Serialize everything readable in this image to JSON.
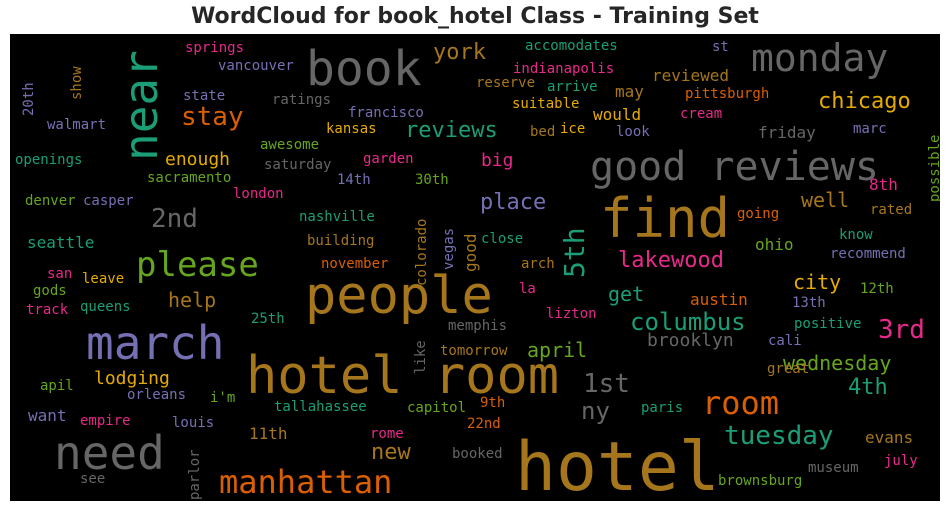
{
  "chart_data": {
    "type": "wordcloud",
    "title": "WordCloud for book_hotel Class - Training Set",
    "background": "#000000",
    "palette": {
      "gray": "#666666",
      "brown": "#a6761d",
      "orange": "#d95f02",
      "green": "#66a61e",
      "teal": "#1b9e77",
      "purple": "#7570b3",
      "pink": "#e7298a",
      "gold": "#e6ab02"
    },
    "words": [
      {
        "text": "hotel",
        "color": "brown"
      },
      {
        "text": "hotel room",
        "color": "brown"
      },
      {
        "text": "people",
        "color": "brown"
      },
      {
        "text": "find",
        "color": "brown"
      },
      {
        "text": "book",
        "color": "gray"
      },
      {
        "text": "march",
        "color": "purple"
      },
      {
        "text": "need",
        "color": "gray"
      },
      {
        "text": "good reviews",
        "color": "gray"
      },
      {
        "text": "monday",
        "color": "gray"
      },
      {
        "text": "near",
        "color": "teal"
      },
      {
        "text": "please",
        "color": "green"
      },
      {
        "text": "manhattan",
        "color": "orange"
      },
      {
        "text": "room",
        "color": "orange"
      },
      {
        "text": "tuesday",
        "color": "teal"
      },
      {
        "text": "columbus",
        "color": "teal"
      },
      {
        "text": "stay",
        "color": "orange"
      },
      {
        "text": "lakewood",
        "color": "pink"
      },
      {
        "text": "1st",
        "color": "gray"
      },
      {
        "text": "2nd",
        "color": "gray"
      },
      {
        "text": "3rd",
        "color": "pink"
      },
      {
        "text": "5th",
        "color": "teal"
      },
      {
        "text": "chicago",
        "color": "gold"
      },
      {
        "text": "reviews",
        "color": "teal"
      },
      {
        "text": "wednesday",
        "color": "green"
      },
      {
        "text": "place",
        "color": "purple"
      },
      {
        "text": "city",
        "color": "gold"
      },
      {
        "text": "york",
        "color": "brown"
      },
      {
        "text": "ny",
        "color": "gray"
      },
      {
        "text": "new",
        "color": "brown"
      },
      {
        "text": "4th",
        "color": "teal"
      },
      {
        "text": "well",
        "color": "brown"
      },
      {
        "text": "help",
        "color": "brown"
      },
      {
        "text": "april",
        "color": "green"
      },
      {
        "text": "get",
        "color": "teal"
      },
      {
        "text": "brooklyn",
        "color": "gray"
      },
      {
        "text": "big",
        "color": "pink"
      },
      {
        "text": "lodging",
        "color": "gold"
      },
      {
        "text": "ohio",
        "color": "green"
      },
      {
        "text": "austin",
        "color": "orange"
      },
      {
        "text": "evans",
        "color": "brown"
      },
      {
        "text": "enough",
        "color": "gold"
      },
      {
        "text": "seattle",
        "color": "teal"
      },
      {
        "text": "11th",
        "color": "brown"
      },
      {
        "text": "8th",
        "color": "pink"
      },
      {
        "text": "friday",
        "color": "gray"
      },
      {
        "text": "reviewed",
        "color": "brown"
      },
      {
        "text": "would",
        "color": "gold"
      },
      {
        "text": "may",
        "color": "brown"
      },
      {
        "text": "want",
        "color": "purple"
      },
      {
        "text": "good",
        "color": "brown"
      },
      {
        "text": "show",
        "color": "brown"
      },
      {
        "text": "20th",
        "color": "purple"
      },
      {
        "text": "springs",
        "color": "pink"
      },
      {
        "text": "vancouver",
        "color": "purple"
      },
      {
        "text": "state",
        "color": "purple"
      },
      {
        "text": "ratings",
        "color": "gray"
      },
      {
        "text": "walmart",
        "color": "purple"
      },
      {
        "text": "openings",
        "color": "teal"
      },
      {
        "text": "awesome",
        "color": "green"
      },
      {
        "text": "saturday",
        "color": "gray"
      },
      {
        "text": "sacramento",
        "color": "green"
      },
      {
        "text": "london",
        "color": "pink"
      },
      {
        "text": "denver",
        "color": "green"
      },
      {
        "text": "casper",
        "color": "purple"
      },
      {
        "text": "nashville",
        "color": "teal"
      },
      {
        "text": "building",
        "color": "brown"
      },
      {
        "text": "san",
        "color": "pink"
      },
      {
        "text": "leave",
        "color": "gold"
      },
      {
        "text": "gods",
        "color": "green"
      },
      {
        "text": "queens",
        "color": "teal"
      },
      {
        "text": "track",
        "color": "pink"
      },
      {
        "text": "25th",
        "color": "teal"
      },
      {
        "text": "apil",
        "color": "green"
      },
      {
        "text": "orleans",
        "color": "purple"
      },
      {
        "text": "i'm",
        "color": "green"
      },
      {
        "text": "empire",
        "color": "pink"
      },
      {
        "text": "louis",
        "color": "purple"
      },
      {
        "text": "see",
        "color": "gray"
      },
      {
        "text": "parlor",
        "color": "gray"
      },
      {
        "text": "accomodates",
        "color": "teal"
      },
      {
        "text": "indianapolis",
        "color": "pink"
      },
      {
        "text": "st",
        "color": "purple"
      },
      {
        "text": "reserve",
        "color": "brown"
      },
      {
        "text": "arrive",
        "color": "teal"
      },
      {
        "text": "suitable",
        "color": "gold"
      },
      {
        "text": "pittsburgh",
        "color": "orange"
      },
      {
        "text": "francisco",
        "color": "purple"
      },
      {
        "text": "cream",
        "color": "pink"
      },
      {
        "text": "kansas",
        "color": "gold"
      },
      {
        "text": "ice",
        "color": "gold"
      },
      {
        "text": "bed",
        "color": "brown"
      },
      {
        "text": "look",
        "color": "purple"
      },
      {
        "text": "marc",
        "color": "purple"
      },
      {
        "text": "garden",
        "color": "pink"
      },
      {
        "text": "14th",
        "color": "purple"
      },
      {
        "text": "30th",
        "color": "green"
      },
      {
        "text": "possible",
        "color": "green"
      },
      {
        "text": "going",
        "color": "orange"
      },
      {
        "text": "rated",
        "color": "brown"
      },
      {
        "text": "colorado",
        "color": "brown"
      },
      {
        "text": "vegas",
        "color": "purple"
      },
      {
        "text": "close",
        "color": "teal"
      },
      {
        "text": "know",
        "color": "teal"
      },
      {
        "text": "recommend",
        "color": "purple"
      },
      {
        "text": "november",
        "color": "orange"
      },
      {
        "text": "arch",
        "color": "brown"
      },
      {
        "text": "la",
        "color": "pink"
      },
      {
        "text": "12th",
        "color": "green"
      },
      {
        "text": "13th",
        "color": "purple"
      },
      {
        "text": "lizton",
        "color": "pink"
      },
      {
        "text": "memphis",
        "color": "gray"
      },
      {
        "text": "positive",
        "color": "teal"
      },
      {
        "text": "cali",
        "color": "purple"
      },
      {
        "text": "like",
        "color": "gray"
      },
      {
        "text": "tomorrow",
        "color": "brown"
      },
      {
        "text": "great",
        "color": "brown"
      },
      {
        "text": "tallahassee",
        "color": "teal"
      },
      {
        "text": "capitol",
        "color": "green"
      },
      {
        "text": "9th",
        "color": "orange"
      },
      {
        "text": "paris",
        "color": "teal"
      },
      {
        "text": "22nd",
        "color": "orange"
      },
      {
        "text": "rome",
        "color": "pink"
      },
      {
        "text": "booked",
        "color": "gray"
      },
      {
        "text": "museum",
        "color": "gray"
      },
      {
        "text": "july",
        "color": "pink"
      },
      {
        "text": "brownsburg",
        "color": "green"
      }
    ]
  }
}
